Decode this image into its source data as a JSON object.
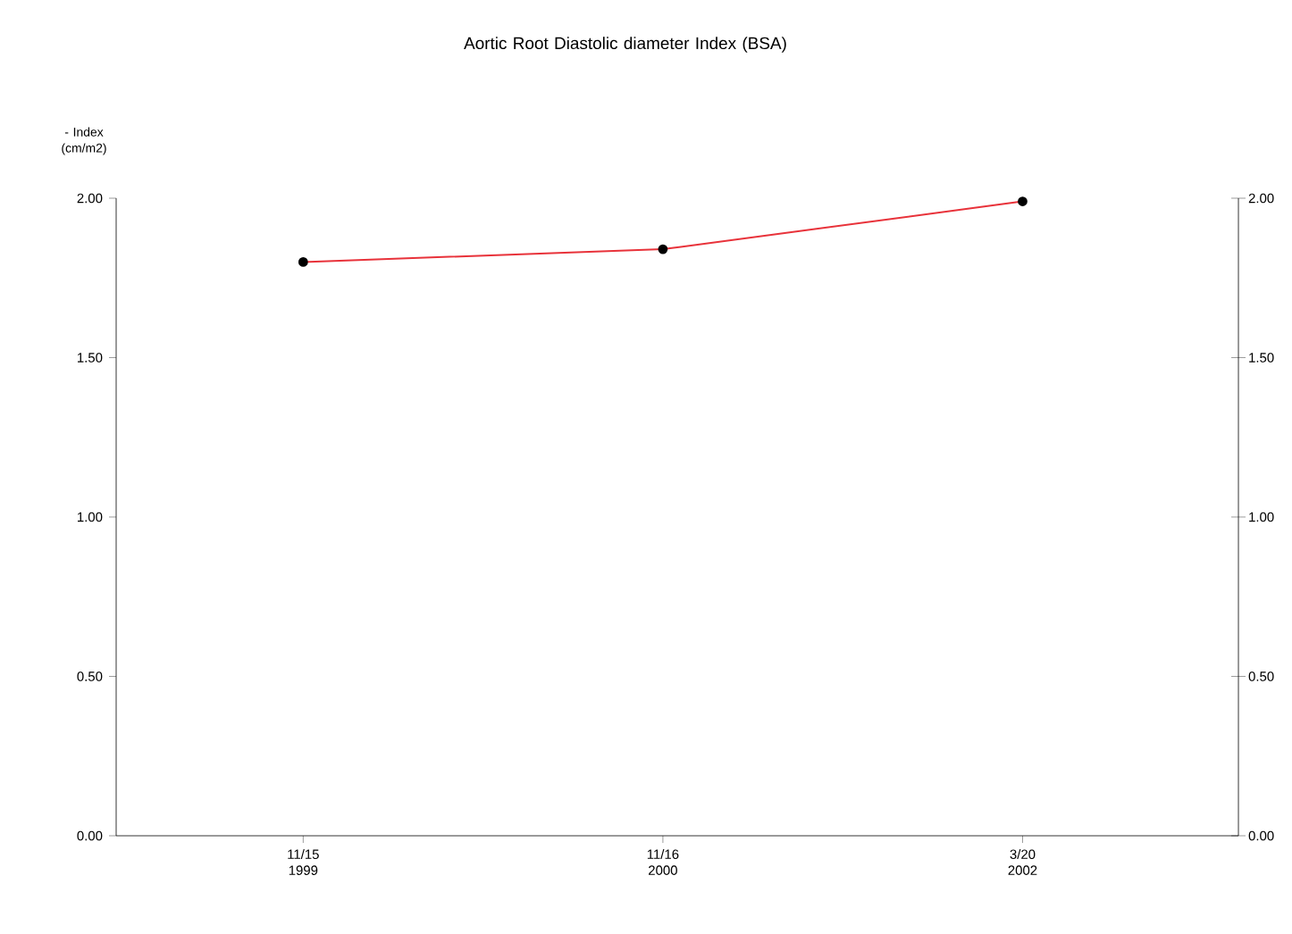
{
  "chart_data": {
    "type": "line",
    "title": "Aortic Root Diastolic diameter Index (BSA)",
    "ylabel": "- Index (cm/m2)",
    "categories": [
      "11/15 1999",
      "11/16 2000",
      "3/20 2002"
    ],
    "series": [
      {
        "color": "#e8323a",
        "values": [
          1.8,
          1.84,
          1.99
        ]
      }
    ],
    "ylim": [
      0,
      2
    ],
    "yticks": [
      {
        "value": 0,
        "label": "0.00"
      },
      {
        "value": 0.5,
        "label": "0.50"
      },
      {
        "value": 1,
        "label": "1.00"
      },
      {
        "value": 1.5,
        "label": "1.50"
      },
      {
        "value": 2,
        "label": "2.00"
      }
    ],
    "y2lim": [
      0,
      2
    ],
    "y2ticks": [
      {
        "value": 0,
        "label": "0.00"
      },
      {
        "value": 0.5,
        "label": "0.50"
      },
      {
        "value": 1,
        "label": "1.00"
      },
      {
        "value": 1.5,
        "label": "1.50"
      },
      {
        "value": 2,
        "label": "2.00"
      }
    ],
    "grid": false,
    "marker": "circle",
    "line_style": "solid"
  }
}
